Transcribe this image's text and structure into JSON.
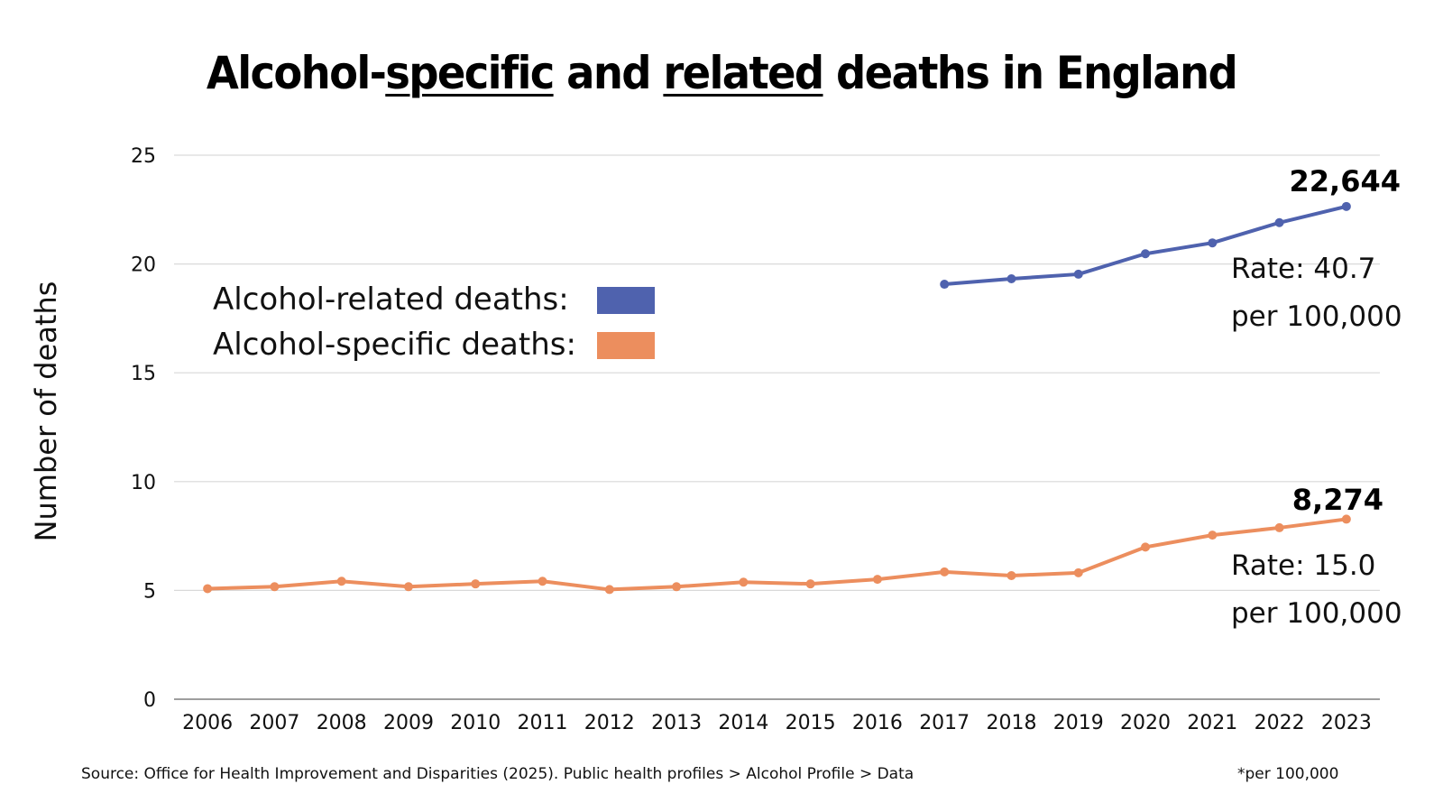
{
  "chart_data": {
    "type": "line",
    "title_parts": [
      "Alcohol-",
      "specific",
      " and ",
      "related",
      " deaths in England"
    ],
    "title": "Alcohol-specific and related deaths in England",
    "xlabel": "",
    "ylabel": "Number of deaths",
    "ylim": [
      0,
      25
    ],
    "yticks": [
      0,
      5,
      10,
      15,
      20,
      25
    ],
    "grid": true,
    "categories": [
      "2006",
      "2007",
      "2008",
      "2009",
      "2010",
      "2011",
      "2012",
      "2013",
      "2014",
      "2015",
      "2016",
      "2017",
      "2018",
      "2019",
      "2020",
      "2021",
      "2022",
      "2023"
    ],
    "series": [
      {
        "name": "Alcohol-related deaths",
        "legend_label": "Alcohol-related deaths:",
        "color": "#4F62AE",
        "values": [
          null,
          null,
          null,
          null,
          null,
          null,
          null,
          null,
          null,
          null,
          null,
          19.07,
          19.32,
          19.53,
          20.47,
          20.97,
          21.9,
          22.644
        ],
        "end_label": "22,644",
        "rate_lines": [
          "Rate: 40.7",
          "per 100,000"
        ]
      },
      {
        "name": "Alcohol-specific deaths",
        "legend_label": "Alcohol-specific deaths:",
        "color": "#EC8E5E",
        "values": [
          5.08,
          5.17,
          5.42,
          5.17,
          5.3,
          5.42,
          5.04,
          5.17,
          5.38,
          5.3,
          5.51,
          5.85,
          5.68,
          5.81,
          6.99,
          7.54,
          7.88,
          8.274
        ],
        "end_label": "8,274",
        "rate_lines": [
          "Rate: 15.0",
          "per 100,000"
        ]
      }
    ],
    "legend_position": "upper-left"
  },
  "footer": {
    "source": "Source: Office for Health Improvement and Disparities (2025). Public health profiles > Alcohol Profile > Data",
    "note": "*per 100,000"
  },
  "colors": {
    "grid": "#D9D9D9",
    "axis": "#7F7F7F"
  }
}
